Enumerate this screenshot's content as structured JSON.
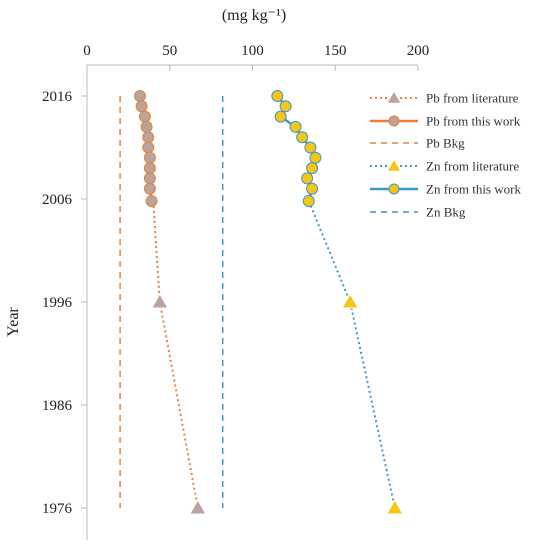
{
  "chart_data": {
    "type": "line",
    "xlabel": "(mg kg⁻¹)",
    "ylabel": "Year",
    "xlim": [
      0,
      200
    ],
    "ylim": [
      1976,
      2016
    ],
    "x_ticks": [
      "0",
      "50",
      "100",
      "150",
      "200"
    ],
    "y_ticks": [
      "2016",
      "2006",
      "1996",
      "1986",
      "1976"
    ],
    "grid": false,
    "legend_position": "right",
    "colors": {
      "pb": "#E8813A",
      "pb_marker": "#B9A39A",
      "zn": "#3C97C9",
      "zn_marker": "#F5C518"
    },
    "series": [
      {
        "name": "Pb from literature",
        "points": [
          [
            40,
            2005.8
          ],
          [
            44,
            1996
          ],
          [
            67,
            1976
          ]
        ]
      },
      {
        "name": "Pb from this work",
        "points": [
          [
            32,
            2016
          ],
          [
            33,
            2015
          ],
          [
            35,
            2014
          ],
          [
            36,
            2013
          ],
          [
            37,
            2012
          ],
          [
            37,
            2011
          ],
          [
            38,
            2010
          ],
          [
            38,
            2009
          ],
          [
            38,
            2008
          ],
          [
            38,
            2007
          ],
          [
            39,
            2005.8
          ]
        ]
      },
      {
        "name": "Pb Bkg",
        "points": [
          [
            20,
            2016
          ],
          [
            20,
            1976
          ]
        ]
      },
      {
        "name": "Zn from literature",
        "points": [
          [
            134,
            2005.8
          ],
          [
            159,
            1996
          ],
          [
            186,
            1976
          ]
        ]
      },
      {
        "name": "Zn from this work",
        "points": [
          [
            115,
            2016
          ],
          [
            120,
            2015
          ],
          [
            117,
            2014
          ],
          [
            126,
            2013
          ],
          [
            130,
            2012
          ],
          [
            135,
            2011
          ],
          [
            138,
            2010
          ],
          [
            136,
            2009
          ],
          [
            133,
            2008
          ],
          [
            136,
            2007
          ],
          [
            134,
            2005.8
          ]
        ]
      },
      {
        "name": "Zn Bkg",
        "points": [
          [
            82,
            2016
          ],
          [
            82,
            1976
          ]
        ]
      }
    ]
  }
}
